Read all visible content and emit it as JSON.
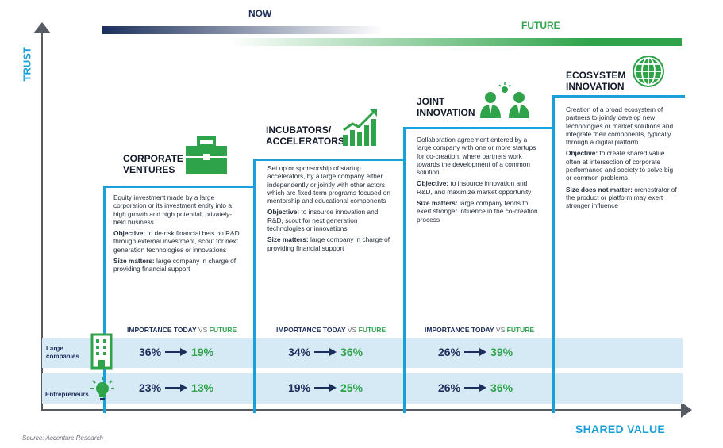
{
  "timeline": {
    "now": "NOW",
    "future": "FUTURE"
  },
  "axes": {
    "y_label": "TRUST",
    "x_label": "SHARED VALUE"
  },
  "source": "Source: Accenture Research",
  "importance_header": {
    "today": "IMPORTANCE TODAY",
    "vs": "VS",
    "future": "FUTURE"
  },
  "rows": [
    {
      "label_line1": "Large",
      "label_line2": "companies",
      "icon": "building-icon"
    },
    {
      "label_line1": "Entrepreneurs",
      "label_line2": "",
      "icon": "lightbulb-icon"
    }
  ],
  "colors": {
    "accent_blue": "#1aa0d8",
    "navy": "#1c2f5c",
    "green": "#2ea34a"
  },
  "columns": [
    {
      "title1": "CORPORATE",
      "title2": "VENTURES",
      "icon": "briefcase-icon",
      "desc": "Equity investment made by a large corporation or its investment entity into a high growth and high potential, privately-held business",
      "objective_label": "Objective:",
      "objective": " to de-risk financial bets on R&D through external investment, scout for next generation technologies or innovations",
      "size_label": "Size matters:",
      "size": " large company in charge of providing financial support",
      "large_today": "36%",
      "large_future": "19%",
      "ent_today": "23%",
      "ent_future": "13%"
    },
    {
      "title1": "INCUBATORS/",
      "title2": "ACCELERATORS",
      "icon": "growth-chart-icon",
      "desc": "Set up or sponsorship of startup accelerators, by a large company either independently or jointly with other actors, which are fixed-term programs focused on mentorship and educational components",
      "objective_label": "Objective:",
      "objective": " to insource innovation and R&D, scout for next generation technologies or innovations",
      "size_label": "Size matters:",
      "size": " large company in charge of providing financial support",
      "large_today": "34%",
      "large_future": "36%",
      "ent_today": "19%",
      "ent_future": "25%"
    },
    {
      "title1": "JOINT",
      "title2": "INNOVATION",
      "icon": "people-idea-icon",
      "desc": "Collaboration agreement entered by a large company  with one or more startups for co-creation, where partners work towards the development of a common solution",
      "objective_label": "Objective:",
      "objective": " to insource innovation and R&D, and maximize market opportunity",
      "size_label": "Size matters:",
      "size": " large company tends to exert stronger influence in the co-creation process",
      "large_today": "26%",
      "large_future": "39%",
      "ent_today": "26%",
      "ent_future": "36%"
    },
    {
      "title1": "ECOSYSTEM",
      "title2": "INNOVATION",
      "icon": "globe-icon",
      "desc": "Creation of a broad ecosystem of partners to jointly develop new technologies or market solutions and integrate their components, typically through a digital platform",
      "objective_label": "Objective:",
      "objective": " to create shared value often at intersection of corporate performance and society to solve big or common problems",
      "size_label": "Size does not matter:",
      "size": " orchestrator of the product or platform may exert stronger influence"
    }
  ]
}
